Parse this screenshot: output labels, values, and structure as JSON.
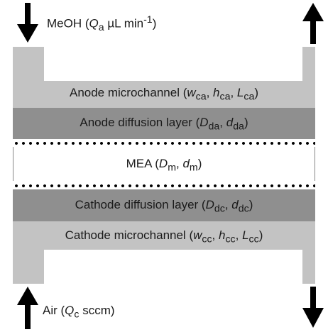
{
  "inlet_top": {
    "species": "MeOH",
    "flow_symbol": "Q",
    "flow_sub": "a",
    "units": "µL min",
    "units_sup": "-1"
  },
  "inlet_bottom": {
    "species": "Air",
    "flow_symbol": "Q",
    "flow_sub": "c",
    "units": "sccm"
  },
  "layers": {
    "anode_microchannel": {
      "name": "Anode microchannel",
      "p1": "w",
      "p1_sub": "ca",
      "p2": "h",
      "p2_sub": "ca",
      "p3": "L",
      "p3_sub": "ca"
    },
    "anode_diffusion": {
      "name": "Anode diffusion layer",
      "p1": "D",
      "p1_sub": "da",
      "p2": "d",
      "p2_sub": "da"
    },
    "mea": {
      "name": "MEA",
      "p1": "D",
      "p1_sub": "m",
      "p2": "d",
      "p2_sub": "m"
    },
    "cathode_diffusion": {
      "name": "Cathode diffusion layer",
      "p1": "D",
      "p1_sub": "dc",
      "p2": "d",
      "p2_sub": "dc"
    },
    "cathode_microchannel": {
      "name": "Cathode microchannel",
      "p1": "w",
      "p1_sub": "cc",
      "p2": "h",
      "p2_sub": "cc",
      "p3": "L",
      "p3_sub": "cc"
    }
  },
  "colors": {
    "channel": "#c3c3c3",
    "diffusion": "#8f8f8f",
    "mea": "#ffffff",
    "arrow": "#000000"
  }
}
